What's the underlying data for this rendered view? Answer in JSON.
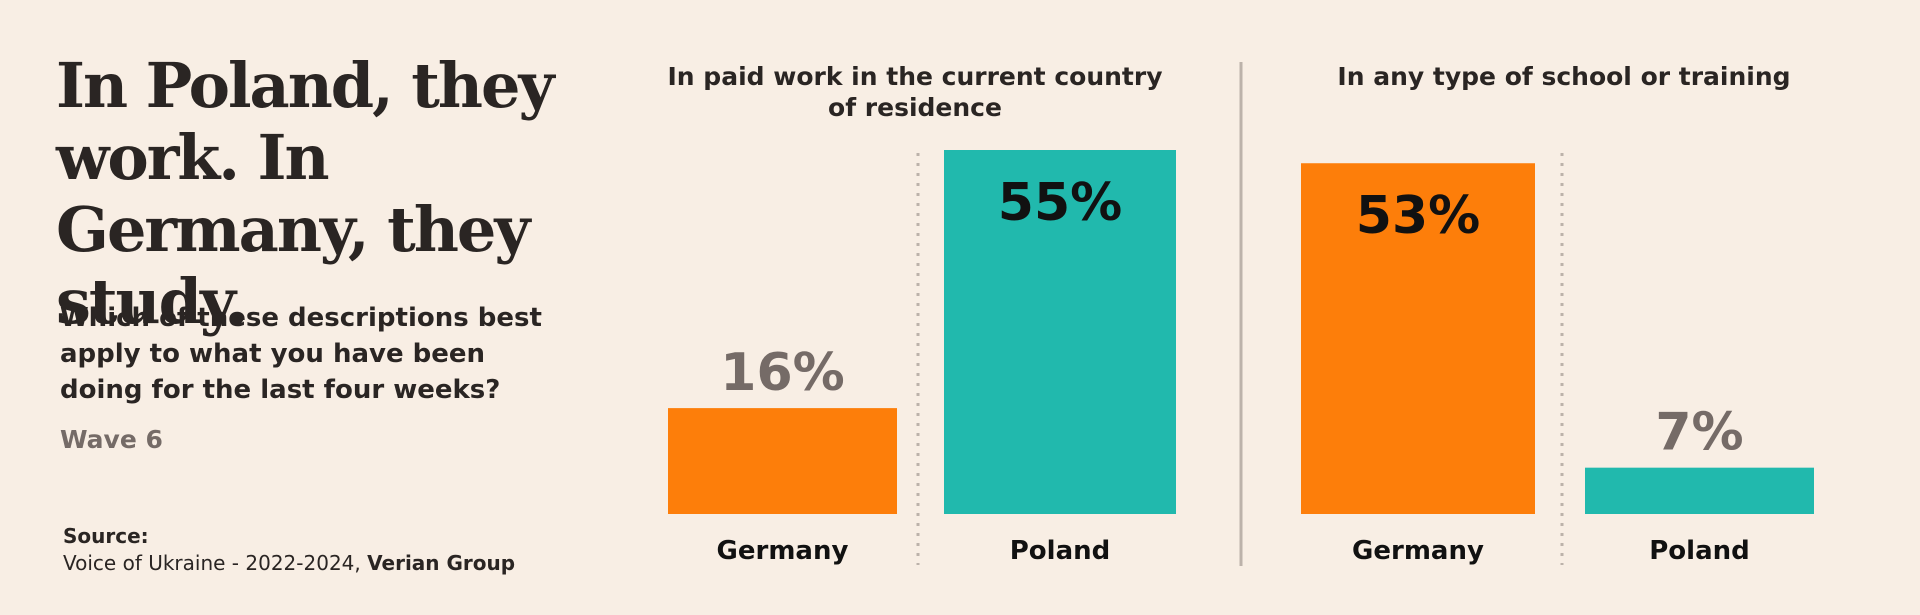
{
  "headline": "In Poland, they work. In Germany, they study.",
  "question": "Which of these descriptions best apply to what you have been doing for the last four weeks?",
  "wave": "Wave 6",
  "source": {
    "label": "Source:",
    "text": "Voice of Ukraine - 2022-2024, ",
    "org": "Verian Group"
  },
  "colors": {
    "germany": "#fd7e0a",
    "poland": "#21b9ad",
    "background": "#f8eee4",
    "divider": "#bcb2aa"
  },
  "chart_data": [
    {
      "type": "bar",
      "title": "In paid work in the current country of residence",
      "categories": [
        "Germany",
        "Poland"
      ],
      "values": [
        16,
        55
      ],
      "value_labels": [
        "16%",
        "55%"
      ],
      "ylim": [
        0,
        55
      ]
    },
    {
      "type": "bar",
      "title": "In any type of school or training",
      "categories": [
        "Germany",
        "Poland"
      ],
      "values": [
        53,
        7
      ],
      "value_labels": [
        "53%",
        "7%"
      ],
      "ylim": [
        0,
        55
      ]
    }
  ]
}
